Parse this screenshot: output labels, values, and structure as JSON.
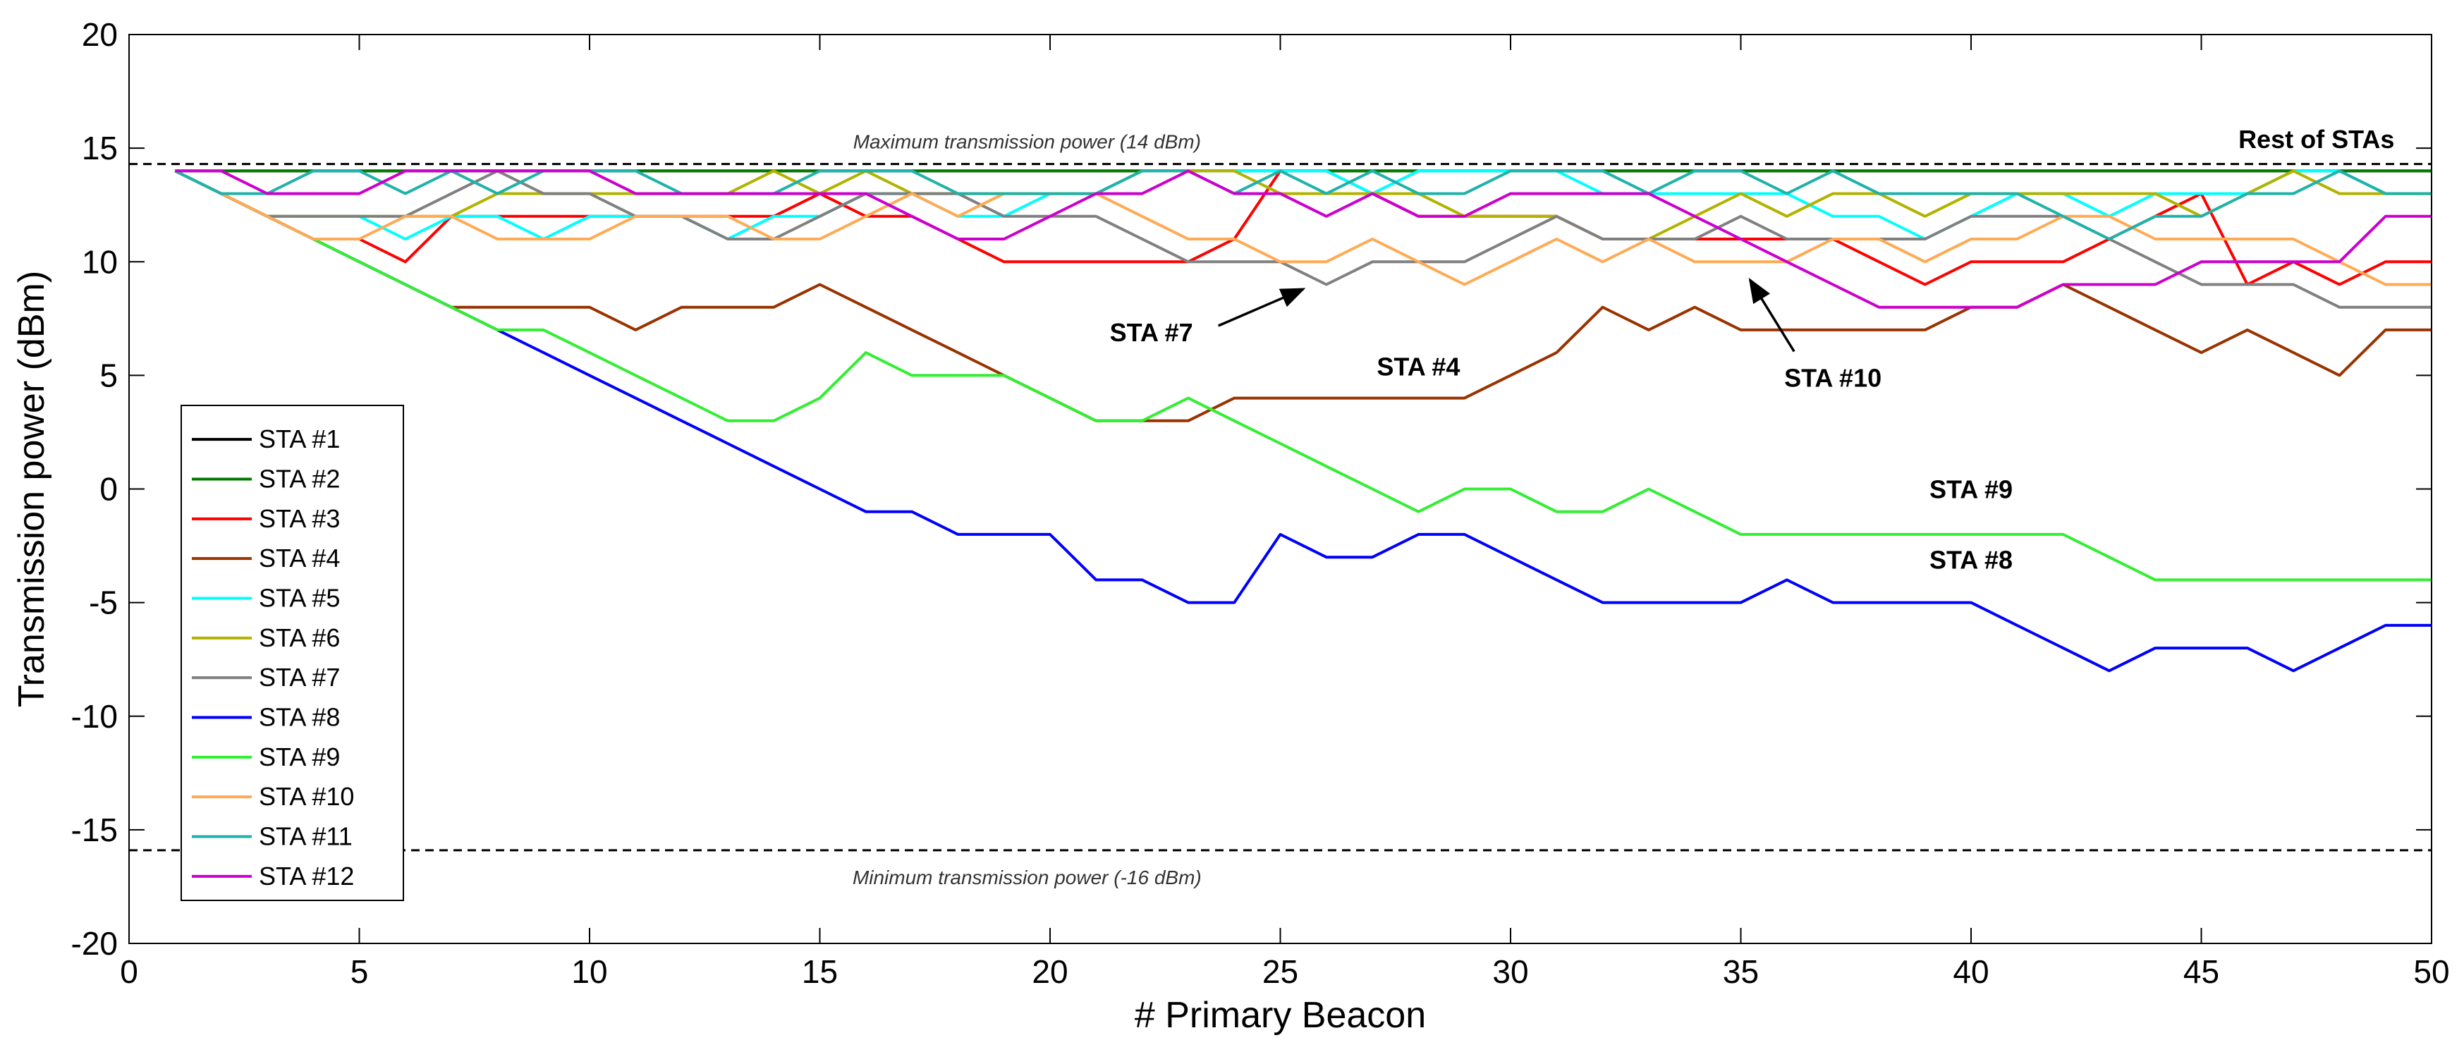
{
  "chart_data": {
    "type": "line",
    "title": "",
    "xlabel": "# Primary Beacon",
    "ylabel": "Transmission power (dBm)",
    "xlim": [
      0,
      50
    ],
    "ylim": [
      -20,
      20
    ],
    "xticks": [
      0,
      5,
      10,
      15,
      20,
      25,
      30,
      35,
      40,
      45,
      50
    ],
    "yticks": [
      -20,
      -15,
      -10,
      -5,
      0,
      5,
      10,
      15,
      20
    ],
    "grid": false,
    "legend_position": "bottom-left",
    "x": [
      1,
      2,
      3,
      4,
      5,
      6,
      7,
      8,
      9,
      10,
      11,
      12,
      13,
      14,
      15,
      16,
      17,
      18,
      19,
      20,
      21,
      22,
      23,
      24,
      25,
      26,
      27,
      28,
      29,
      30,
      31,
      32,
      33,
      34,
      35,
      36,
      37,
      38,
      39,
      40,
      41,
      42,
      43,
      44,
      45,
      46,
      47,
      48,
      49,
      50
    ],
    "series": [
      {
        "name": "STA #1",
        "color": "#000000",
        "values": [
          14,
          14,
          14,
          14,
          14,
          14,
          14,
          14,
          14,
          14,
          14,
          14,
          14,
          14,
          14,
          14,
          14,
          14,
          14,
          14,
          14,
          14,
          14,
          14,
          14,
          14,
          14,
          14,
          14,
          14,
          14,
          14,
          14,
          14,
          14,
          14,
          14,
          14,
          14,
          14,
          14,
          14,
          14,
          14,
          14,
          14,
          14,
          14,
          14,
          14
        ]
      },
      {
        "name": "STA #2",
        "color": "#007a00",
        "values": [
          14,
          14,
          14,
          14,
          14,
          14,
          14,
          14,
          14,
          14,
          14,
          14,
          14,
          14,
          14,
          14,
          14,
          14,
          14,
          14,
          14,
          14,
          14,
          14,
          14,
          14,
          14,
          14,
          14,
          14,
          14,
          14,
          14,
          14,
          14,
          14,
          14,
          14,
          14,
          14,
          14,
          14,
          14,
          14,
          14,
          14,
          14,
          14,
          14,
          14
        ]
      },
      {
        "name": "STA #3",
        "color": "#ff0000",
        "values": [
          14,
          13,
          12,
          11,
          11,
          10,
          12,
          12,
          12,
          12,
          12,
          12,
          12,
          12,
          13,
          12,
          12,
          11,
          10,
          10,
          10,
          10,
          10,
          11,
          14,
          14,
          13,
          12,
          12,
          12,
          12,
          11,
          11,
          11,
          11,
          11,
          11,
          10,
          9,
          10,
          10,
          10,
          11,
          12,
          13,
          9,
          10,
          9,
          10,
          10
        ]
      },
      {
        "name": "STA #4",
        "color": "#993300",
        "values": [
          14,
          13,
          12,
          11,
          10,
          9,
          8,
          8,
          8,
          8,
          7,
          8,
          8,
          8,
          9,
          8,
          7,
          6,
          5,
          4,
          3,
          3,
          3,
          4,
          4,
          4,
          4,
          4,
          4,
          5,
          6,
          8,
          7,
          8,
          7,
          7,
          7,
          7,
          7,
          8,
          8,
          9,
          8,
          7,
          6,
          7,
          6,
          5,
          7,
          7
        ]
      },
      {
        "name": "STA #5",
        "color": "#00ffff",
        "values": [
          14,
          13,
          12,
          12,
          12,
          11,
          12,
          12,
          11,
          12,
          12,
          12,
          11,
          12,
          12,
          13,
          13,
          12,
          12,
          13,
          13,
          14,
          14,
          14,
          14,
          14,
          13,
          14,
          14,
          14,
          14,
          13,
          13,
          13,
          13,
          13,
          12,
          12,
          11,
          12,
          13,
          13,
          12,
          13,
          13,
          13,
          14,
          14,
          13,
          13
        ]
      },
      {
        "name": "STA #6",
        "color": "#b2b200",
        "values": [
          14,
          13,
          12,
          12,
          12,
          12,
          12,
          13,
          13,
          13,
          13,
          13,
          13,
          14,
          13,
          14,
          13,
          13,
          13,
          13,
          13,
          14,
          14,
          14,
          13,
          13,
          13,
          13,
          12,
          12,
          12,
          11,
          11,
          12,
          13,
          12,
          13,
          13,
          12,
          13,
          13,
          13,
          13,
          13,
          12,
          13,
          14,
          13,
          13,
          13
        ]
      },
      {
        "name": "STA #7",
        "color": "#808080",
        "values": [
          14,
          13,
          12,
          12,
          12,
          12,
          13,
          14,
          13,
          13,
          12,
          12,
          11,
          11,
          12,
          13,
          13,
          13,
          12,
          12,
          12,
          11,
          10,
          10,
          10,
          9,
          10,
          10,
          10,
          11,
          12,
          11,
          11,
          11,
          12,
          11,
          11,
          11,
          11,
          12,
          12,
          12,
          11,
          10,
          9,
          9,
          9,
          8,
          8,
          8
        ]
      },
      {
        "name": "STA #8",
        "color": "#0000ff",
        "values": [
          14,
          13,
          12,
          11,
          10,
          9,
          8,
          7,
          6,
          5,
          4,
          3,
          2,
          1,
          0,
          -1,
          -1,
          -2,
          -2,
          -2,
          -4,
          -4,
          -5,
          -5,
          -2,
          -3,
          -3,
          -2,
          -2,
          -3,
          -4,
          -5,
          -5,
          -5,
          -5,
          -4,
          -5,
          -5,
          -5,
          -5,
          -6,
          -7,
          -8,
          -7,
          -7,
          -7,
          -8,
          -7,
          -6,
          -6
        ]
      },
      {
        "name": "STA #9",
        "color": "#33ee33",
        "values": [
          14,
          13,
          12,
          11,
          10,
          9,
          8,
          7,
          7,
          6,
          5,
          4,
          3,
          3,
          4,
          6,
          5,
          5,
          5,
          4,
          3,
          3,
          4,
          3,
          2,
          1,
          0,
          -1,
          0,
          0,
          -1,
          -1,
          0,
          -1,
          -2,
          -2,
          -2,
          -2,
          -2,
          -2,
          -2,
          -2,
          -3,
          -4,
          -4,
          -4,
          -4,
          -4,
          -4,
          -4
        ]
      },
      {
        "name": "STA #10",
        "color": "#ffaa55",
        "values": [
          14,
          13,
          12,
          11,
          11,
          12,
          12,
          11,
          11,
          11,
          12,
          12,
          12,
          11,
          11,
          12,
          13,
          12,
          13,
          13,
          13,
          12,
          11,
          11,
          10,
          10,
          11,
          10,
          9,
          10,
          11,
          10,
          11,
          10,
          10,
          10,
          11,
          11,
          10,
          11,
          11,
          12,
          12,
          11,
          11,
          11,
          11,
          10,
          9,
          9
        ]
      },
      {
        "name": "STA #11",
        "color": "#20b2aa",
        "values": [
          14,
          13,
          13,
          14,
          14,
          13,
          14,
          13,
          14,
          14,
          14,
          13,
          13,
          13,
          14,
          14,
          14,
          13,
          13,
          13,
          13,
          14,
          14,
          13,
          14,
          13,
          14,
          13,
          13,
          14,
          14,
          14,
          13,
          14,
          14,
          13,
          14,
          13,
          13,
          13,
          13,
          12,
          11,
          12,
          12,
          13,
          13,
          14,
          13,
          13
        ]
      },
      {
        "name": "STA #12",
        "color": "#cc00cc",
        "values": [
          14,
          14,
          13,
          13,
          13,
          14,
          14,
          14,
          14,
          14,
          13,
          13,
          13,
          13,
          13,
          13,
          12,
          11,
          11,
          12,
          13,
          13,
          14,
          13,
          13,
          12,
          13,
          12,
          12,
          13,
          13,
          13,
          13,
          12,
          11,
          10,
          9,
          8,
          8,
          8,
          8,
          9,
          9,
          9,
          10,
          10,
          10,
          10,
          12,
          12
        ]
      }
    ],
    "reference_lines": [
      {
        "y": 14.3,
        "label": "Maximum transmission power (14 dBm)"
      },
      {
        "y": -15.9,
        "label": "Minimum transmission power (-16 dBm)"
      }
    ],
    "annotations": [
      {
        "text": "Rest of STAs",
        "x": 47.5,
        "y": 15.0,
        "arrow": false
      },
      {
        "text": "STA #7",
        "x": 22.2,
        "y": 6.5,
        "arrow": true,
        "arrow_to": [
          25.5,
          8.8
        ]
      },
      {
        "text": "STA #4",
        "x": 28.0,
        "y": 5.0,
        "arrow": false
      },
      {
        "text": "STA #10",
        "x": 37.0,
        "y": 4.5,
        "arrow": true,
        "arrow_to": [
          35.2,
          9.2
        ]
      },
      {
        "text": "STA #9",
        "x": 40.0,
        "y": -0.4,
        "arrow": false
      },
      {
        "text": "STA #8",
        "x": 40.0,
        "y": -3.5,
        "arrow": false
      }
    ]
  }
}
